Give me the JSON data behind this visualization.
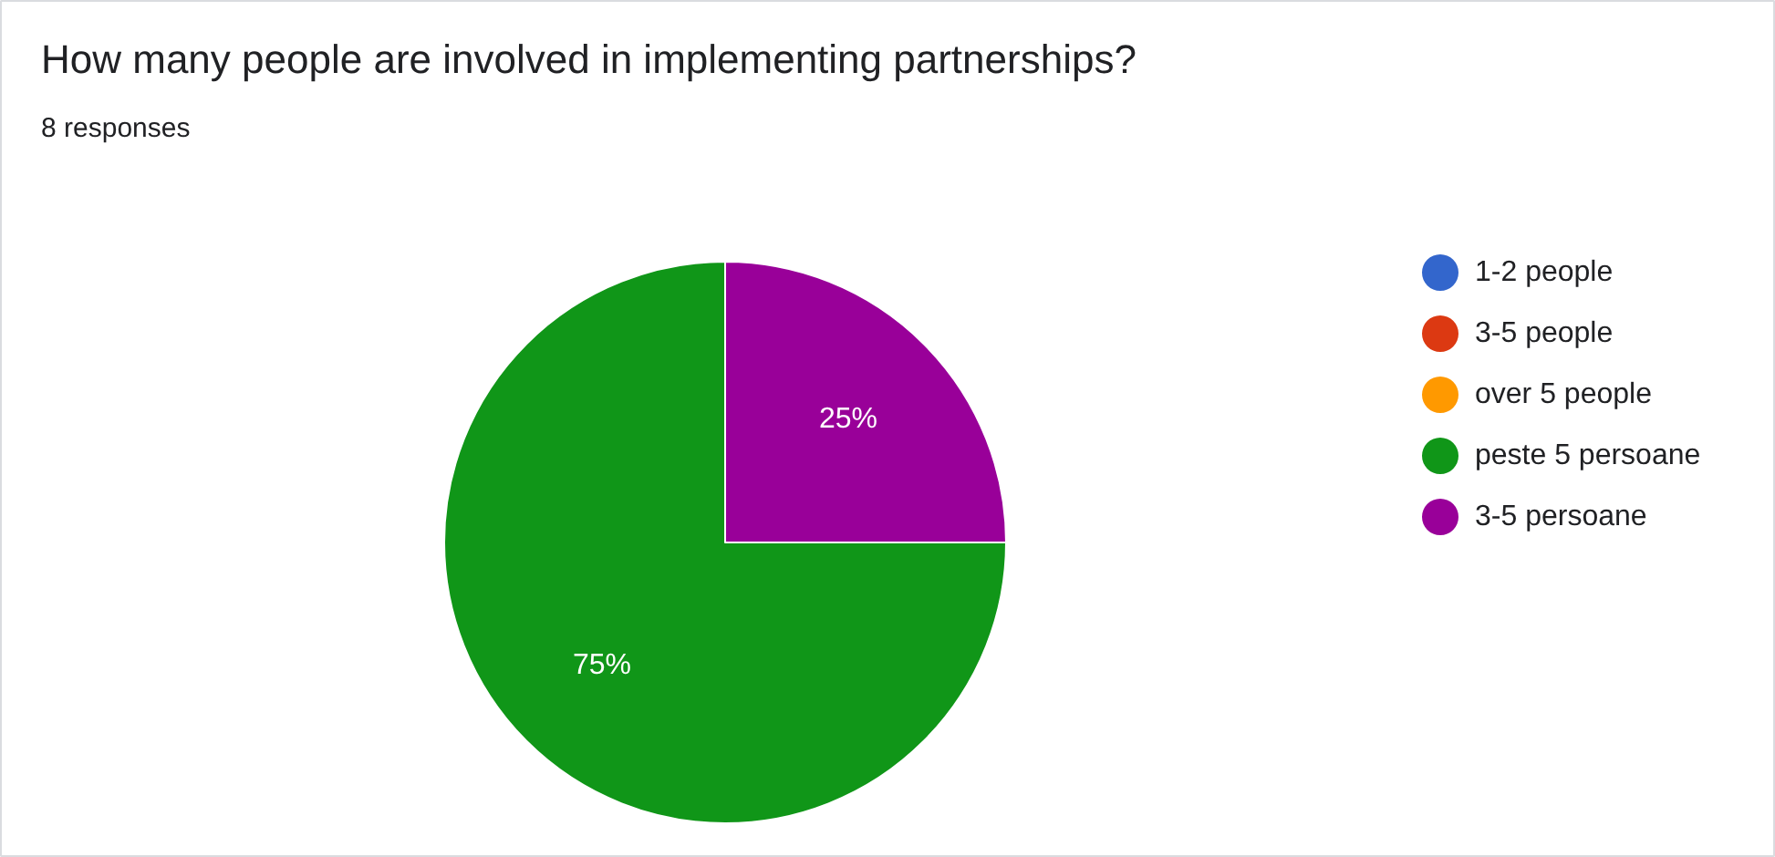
{
  "chart_data": {
    "type": "pie",
    "title": "How many people are involved in implementing partnerships?",
    "subtitle": "8 responses",
    "categories": [
      "1-2 people",
      "3-5 people",
      "over 5 people",
      "peste 5 persoane",
      "3-5 persoane"
    ],
    "values": [
      0,
      0,
      0,
      75,
      25
    ],
    "colors": [
      "#3366cc",
      "#dc3912",
      "#ff9900",
      "#109618",
      "#990099"
    ],
    "value_labels": [
      null,
      null,
      null,
      "75%",
      "25%"
    ],
    "legend": "right"
  }
}
